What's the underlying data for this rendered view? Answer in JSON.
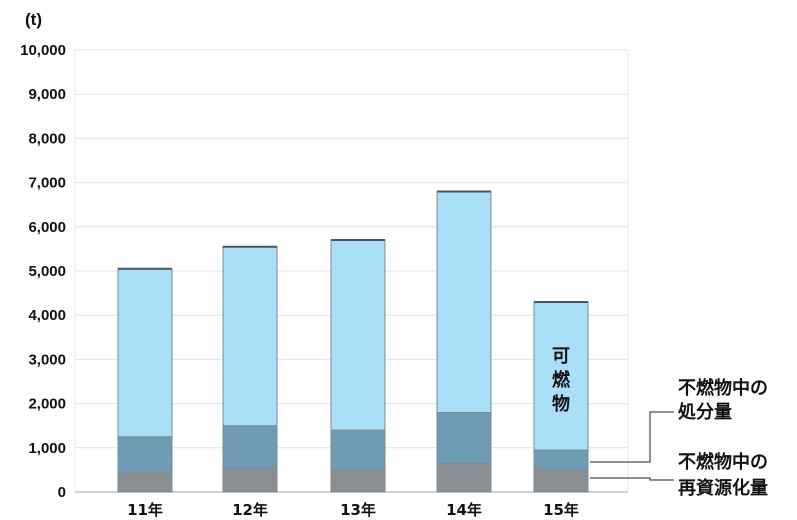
{
  "chart_data": {
    "type": "bar",
    "stacked": true,
    "unit_label": "(t)",
    "categories": [
      "11年",
      "12年",
      "13年",
      "14年",
      "15年"
    ],
    "series": [
      {
        "key": "recycled",
        "values": [
          450,
          550,
          500,
          650,
          500
        ],
        "color": "#8a8f93"
      },
      {
        "key": "disposal",
        "values": [
          800,
          950,
          900,
          1150,
          450
        ],
        "color": "#6f9bb5"
      },
      {
        "key": "combustible",
        "values": [
          3800,
          4050,
          4300,
          5000,
          3350
        ],
        "color": "#a9dff8"
      }
    ],
    "yticks": [
      "0",
      "1,000",
      "2,000",
      "3,000",
      "4,000",
      "5,000",
      "6,000",
      "7,000",
      "8,000",
      "9,000",
      "10,000"
    ],
    "ylim": [
      0,
      10000
    ],
    "grid": true,
    "annotations": {
      "combustible": [
        "可",
        "燃",
        "物"
      ],
      "disposal": [
        "不燃物中の",
        "処分量"
      ],
      "recycled": [
        "不燃物中の",
        "再資源化量"
      ]
    }
  }
}
